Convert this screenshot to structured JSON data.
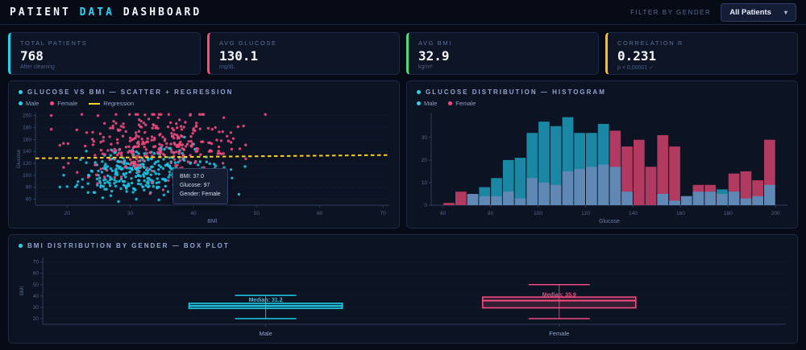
{
  "header": {
    "title_part1": "PATIENT ",
    "title_part2": "DATA",
    "title_part3": " DASHBOARD",
    "filter_label": "FILTER BY GENDER",
    "filter_value": "All Patients",
    "chevron": "▾"
  },
  "stats": [
    {
      "label": "TOTAL PATIENTS",
      "value": "768",
      "sub": "After cleaning",
      "accent": "#22d3ee"
    },
    {
      "label": "AVG GLUCOSE",
      "value": "130.1",
      "sub": "mg/dL",
      "accent": "#fb4d6d"
    },
    {
      "label": "AVG BMI",
      "value": "32.9",
      "sub": "kg/m²",
      "accent": "#4ade80"
    },
    {
      "label": "CORRELATION R",
      "value": "0.231",
      "sub": "p < 0.00001 ✓",
      "accent": "#fbbf24"
    }
  ],
  "chart_data": [
    {
      "type": "scatter",
      "title": "GLUCOSE VS BMI — SCATTER + REGRESSION",
      "xlabel": "BMI",
      "ylabel": "Glucose",
      "xlim": [
        15,
        71
      ],
      "ylim": [
        50,
        205
      ],
      "x_ticks": [
        20,
        30,
        40,
        50,
        60,
        70
      ],
      "y_ticks": [
        60,
        80,
        100,
        120,
        140,
        160,
        180,
        200
      ],
      "series": [
        {
          "name": "Male",
          "color": "#1ec8e7",
          "n": 310,
          "bmi_mean": 32,
          "bmi_sd": 5.8,
          "glucose_mean": 107,
          "glucose_sd": 19
        },
        {
          "name": "Female",
          "color": "#f14b80",
          "n": 310,
          "bmi_mean": 33.5,
          "bmi_sd": 6.6,
          "glucose_mean": 151,
          "glucose_sd": 28
        }
      ],
      "regression": {
        "label": "Regression",
        "color": "#f6d22b",
        "x": [
          15,
          71
        ],
        "y": [
          128.5,
          134
        ]
      },
      "tooltip": {
        "bmi": "BMI: 37.0",
        "glucose": "Glucose: 97",
        "gender": "Gender: Female"
      }
    },
    {
      "type": "histogram",
      "title": "GLUCOSE DISTRIBUTION — HISTOGRAM",
      "xlabel": "Glucose",
      "bin_start": 60,
      "bin_width": 5,
      "xlim": [
        55,
        205
      ],
      "ylim": [
        0,
        41
      ],
      "x_ticks": [
        60,
        80,
        100,
        120,
        140,
        160,
        180,
        200
      ],
      "y_ticks": [
        0,
        10,
        20,
        30
      ],
      "overlap_color": "#5f88b4",
      "series": [
        {
          "name": "Male",
          "color": "#1a87a4",
          "values": [
            0,
            0,
            5,
            8,
            12,
            20,
            21,
            32,
            37,
            35,
            39,
            32,
            32,
            36,
            17,
            6,
            0,
            0,
            5,
            2,
            4,
            6,
            6,
            7,
            6,
            3,
            4,
            9
          ]
        },
        {
          "name": "Female",
          "color": "#b23a60",
          "values": [
            1,
            6,
            5,
            4,
            4,
            6,
            3,
            12,
            10,
            9,
            15,
            16,
            17,
            18,
            33,
            26,
            29,
            17,
            31,
            26,
            4,
            9,
            9,
            5,
            14,
            15,
            11,
            29
          ]
        }
      ]
    },
    {
      "type": "boxplot",
      "title": "BMI DISTRIBUTION BY GENDER — BOX PLOT",
      "ylabel": "BMI",
      "ylim": [
        15,
        74
      ],
      "y_ticks": [
        20,
        30,
        40,
        50,
        60,
        70
      ],
      "groups": [
        {
          "name": "Male",
          "color": "#22cbe8",
          "median": 31.2,
          "median_label": "Median: 31.2",
          "q1": 29,
          "q3": 33.5,
          "whisker_low": 20,
          "whisker_high": 40.5,
          "center_frac": 0.3
        },
        {
          "name": "Female",
          "color": "#f14b80",
          "median": 35.9,
          "median_label": "Median: 35.9",
          "q1": 29.5,
          "q3": 39,
          "whisker_low": 20,
          "whisker_high": 50,
          "center_frac": 0.695
        }
      ]
    }
  ]
}
